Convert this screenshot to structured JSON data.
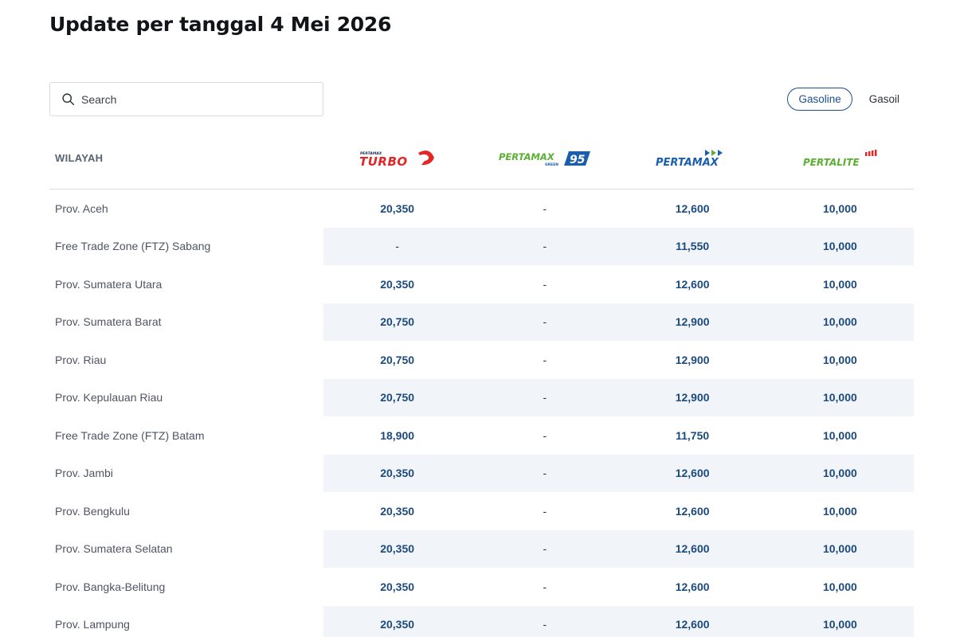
{
  "title": "Update per tanggal 4 Mei 2026",
  "search": {
    "placeholder": "Search",
    "value": "",
    "icon": "search-icon"
  },
  "fuel_type_toggle": {
    "options": [
      "Gasoline",
      "Gasoil"
    ],
    "selected": "Gasoline"
  },
  "colors": {
    "accent": "#1a4f8a",
    "price_text": "#1c4a7c",
    "alt_row_bg": "#f1f4f8",
    "turbo_red": "#e32726",
    "green": "#5bb032",
    "blue": "#1b5eab"
  },
  "table": {
    "region_header": "WILAYAH",
    "products": [
      {
        "id": "turbo",
        "logo_text": "TURBO",
        "logo_small": "PERTAMAX"
      },
      {
        "id": "green95",
        "logo_text": "PERTAMAX",
        "logo_small": "GREEN",
        "logo_badge": "95"
      },
      {
        "id": "pertamax",
        "logo_text": "PERTAMAX"
      },
      {
        "id": "pertalite",
        "logo_text": "PERTALITE"
      }
    ],
    "rows": [
      {
        "region": "Prov. Aceh",
        "prices": [
          "20,350",
          "-",
          "12,600",
          "10,000"
        ]
      },
      {
        "region": "Free Trade Zone (FTZ) Sabang",
        "prices": [
          "-",
          "-",
          "11,550",
          "10,000"
        ]
      },
      {
        "region": "Prov. Sumatera Utara",
        "prices": [
          "20,350",
          "-",
          "12,600",
          "10,000"
        ]
      },
      {
        "region": "Prov. Sumatera Barat",
        "prices": [
          "20,750",
          "-",
          "12,900",
          "10,000"
        ]
      },
      {
        "region": "Prov. Riau",
        "prices": [
          "20,750",
          "-",
          "12,900",
          "10,000"
        ]
      },
      {
        "region": "Prov. Kepulauan Riau",
        "prices": [
          "20,750",
          "-",
          "12,900",
          "10,000"
        ]
      },
      {
        "region": "Free Trade Zone (FTZ) Batam",
        "prices": [
          "18,900",
          "-",
          "11,750",
          "10,000"
        ]
      },
      {
        "region": "Prov. Jambi",
        "prices": [
          "20,350",
          "-",
          "12,600",
          "10,000"
        ]
      },
      {
        "region": "Prov. Bengkulu",
        "prices": [
          "20,350",
          "-",
          "12,600",
          "10,000"
        ]
      },
      {
        "region": "Prov. Sumatera Selatan",
        "prices": [
          "20,350",
          "-",
          "12,600",
          "10,000"
        ]
      },
      {
        "region": "Prov. Bangka-Belitung",
        "prices": [
          "20,350",
          "-",
          "12,600",
          "10,000"
        ]
      },
      {
        "region": "Prov. Lampung",
        "prices": [
          "20,350",
          "-",
          "12,600",
          "10,000"
        ]
      }
    ]
  }
}
